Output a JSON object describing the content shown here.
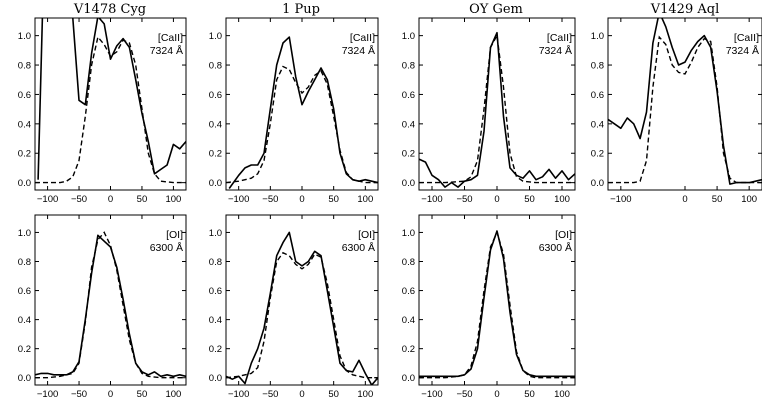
{
  "figure": {
    "titles": [
      "V1478  Cyg",
      "1  Pup",
      "OY  Gem",
      "V1429  Aql"
    ]
  },
  "chart_data": [
    {
      "type": "line",
      "title": "V1478  Cyg",
      "label_line1": "[CaII]",
      "label_line2": "7324 Å",
      "xlim": [
        -120,
        120
      ],
      "ylim": [
        -0.05,
        1.12
      ],
      "xticks": [
        -100,
        -50,
        0,
        50,
        100
      ],
      "yticks": [
        0.0,
        0.2,
        0.4,
        0.6,
        0.8,
        1.0
      ],
      "series": [
        {
          "style": "solid",
          "x": [
            -115,
            -108,
            -100,
            -90,
            -80,
            -70,
            -60,
            -50,
            -40,
            -30,
            -20,
            -10,
            0,
            10,
            20,
            30,
            40,
            50,
            60,
            70,
            80,
            90,
            100,
            110,
            120
          ],
          "y": [
            0.02,
            1.15,
            1.35,
            1.28,
            1.22,
            1.18,
            1.12,
            0.56,
            0.53,
            0.88,
            1.13,
            1.08,
            0.84,
            0.93,
            0.98,
            0.92,
            0.7,
            0.47,
            0.28,
            0.06,
            0.09,
            0.12,
            0.26,
            0.23,
            0.28
          ]
        },
        {
          "style": "dashed",
          "x": [
            -120,
            -100,
            -80,
            -70,
            -60,
            -50,
            -40,
            -30,
            -20,
            -10,
            0,
            10,
            20,
            30,
            40,
            50,
            60,
            70,
            80,
            100,
            120
          ],
          "y": [
            0,
            0,
            0,
            0.01,
            0.04,
            0.15,
            0.45,
            0.8,
            0.99,
            0.94,
            0.86,
            0.89,
            0.97,
            0.95,
            0.8,
            0.5,
            0.2,
            0.06,
            0.01,
            0,
            0
          ]
        }
      ]
    },
    {
      "type": "line",
      "title": "1  Pup",
      "label_line1": "[CaII]",
      "label_line2": "7324 Å",
      "xlim": [
        -120,
        120
      ],
      "ylim": [
        -0.05,
        1.12
      ],
      "xticks": [
        -100,
        -50,
        0,
        50,
        100
      ],
      "yticks": [
        0.0,
        0.2,
        0.4,
        0.6,
        0.8,
        1.0
      ],
      "series": [
        {
          "style": "solid",
          "x": [
            -115,
            -100,
            -90,
            -80,
            -70,
            -60,
            -50,
            -40,
            -30,
            -20,
            -10,
            0,
            10,
            20,
            30,
            40,
            50,
            60,
            70,
            80,
            90,
            100,
            110,
            120
          ],
          "y": [
            -0.04,
            0.05,
            0.1,
            0.12,
            0.12,
            0.2,
            0.5,
            0.8,
            0.95,
            0.99,
            0.72,
            0.53,
            0.62,
            0.7,
            0.78,
            0.7,
            0.5,
            0.2,
            0.06,
            0.02,
            0.01,
            0.02,
            0.01,
            0.0
          ]
        },
        {
          "style": "dashed",
          "x": [
            -120,
            -100,
            -80,
            -70,
            -60,
            -50,
            -40,
            -30,
            -20,
            -10,
            0,
            10,
            20,
            30,
            40,
            50,
            60,
            70,
            80,
            100,
            120
          ],
          "y": [
            0,
            0.01,
            0.03,
            0.06,
            0.15,
            0.4,
            0.7,
            0.79,
            0.77,
            0.68,
            0.61,
            0.65,
            0.73,
            0.76,
            0.67,
            0.45,
            0.22,
            0.07,
            0.02,
            0,
            0
          ]
        }
      ]
    },
    {
      "type": "line",
      "title": "OY  Gem",
      "label_line1": "[CaII]",
      "label_line2": "7324 Å",
      "xlim": [
        -120,
        120
      ],
      "ylim": [
        -0.05,
        1.12
      ],
      "xticks": [
        -100,
        -50,
        0,
        50,
        100
      ],
      "yticks": [
        0.0,
        0.2,
        0.4,
        0.6,
        0.8,
        1.0
      ],
      "series": [
        {
          "style": "solid",
          "x": [
            -120,
            -110,
            -100,
            -90,
            -80,
            -70,
            -60,
            -50,
            -40,
            -30,
            -20,
            -10,
            0,
            10,
            20,
            30,
            40,
            50,
            60,
            70,
            80,
            90,
            100,
            110,
            120
          ],
          "y": [
            0.16,
            0.14,
            0.05,
            0.02,
            -0.03,
            0.0,
            -0.03,
            0.01,
            0.02,
            0.05,
            0.35,
            0.92,
            1.02,
            0.45,
            0.1,
            0.05,
            0.03,
            0.08,
            0.02,
            0.04,
            0.09,
            0.03,
            0.08,
            0.02,
            0.06
          ]
        },
        {
          "style": "dashed",
          "x": [
            -120,
            -80,
            -50,
            -40,
            -30,
            -20,
            -10,
            0,
            10,
            20,
            30,
            40,
            60,
            80,
            120
          ],
          "y": [
            0,
            0,
            0.01,
            0.04,
            0.15,
            0.5,
            0.92,
            1.0,
            0.65,
            0.2,
            0.04,
            0.01,
            0,
            0,
            0
          ]
        }
      ]
    },
    {
      "type": "line",
      "title": "V1429  Aql",
      "label_line1": "[CaII]",
      "label_line2": "7324 Å",
      "xlim": [
        -120,
        120
      ],
      "ylim": [
        -0.05,
        1.12
      ],
      "xticks": [
        -100,
        0,
        50,
        100
      ],
      "yticks": [
        0.0,
        0.2,
        0.4,
        0.6,
        0.8,
        1.0
      ],
      "series": [
        {
          "style": "solid",
          "x": [
            -120,
            -110,
            -100,
            -90,
            -80,
            -70,
            -60,
            -50,
            -40,
            -30,
            -20,
            -10,
            0,
            10,
            20,
            30,
            40,
            50,
            60,
            70,
            80,
            90,
            100,
            110,
            120
          ],
          "y": [
            0.43,
            0.4,
            0.37,
            0.44,
            0.4,
            0.3,
            0.48,
            0.95,
            1.16,
            1.06,
            0.92,
            0.8,
            0.82,
            0.9,
            0.96,
            1.0,
            0.92,
            0.62,
            0.25,
            -0.01,
            0.0,
            0.0,
            0.0,
            0.01,
            0.02
          ]
        },
        {
          "style": "dashed",
          "x": [
            -120,
            -100,
            -80,
            -70,
            -60,
            -50,
            -40,
            -30,
            -20,
            -10,
            0,
            10,
            20,
            30,
            40,
            50,
            60,
            70,
            80,
            100,
            120
          ],
          "y": [
            0,
            0,
            0,
            0.01,
            0.15,
            0.65,
            0.99,
            0.94,
            0.8,
            0.75,
            0.74,
            0.82,
            0.92,
            0.98,
            0.96,
            0.65,
            0.2,
            0.03,
            0,
            0,
            0
          ]
        }
      ]
    },
    {
      "type": "line",
      "title": "",
      "label_line1": "[OI]",
      "label_line2": "6300 Å",
      "xlim": [
        -120,
        120
      ],
      "ylim": [
        -0.05,
        1.12
      ],
      "xticks": [
        -100,
        -50,
        0,
        50,
        100
      ],
      "yticks": [
        0.0,
        0.2,
        0.4,
        0.6,
        0.8,
        1.0
      ],
      "series": [
        {
          "style": "solid",
          "x": [
            -120,
            -110,
            -100,
            -90,
            -80,
            -70,
            -60,
            -50,
            -40,
            -30,
            -20,
            -10,
            0,
            10,
            20,
            30,
            40,
            50,
            60,
            70,
            80,
            90,
            100,
            110,
            120
          ],
          "y": [
            0.02,
            0.03,
            0.03,
            0.02,
            0.02,
            0.02,
            0.04,
            0.11,
            0.4,
            0.72,
            0.98,
            0.94,
            0.9,
            0.76,
            0.54,
            0.3,
            0.1,
            0.04,
            0.02,
            0.04,
            0.01,
            0.02,
            0.01,
            0.02,
            0.01
          ]
        },
        {
          "style": "dashed",
          "x": [
            -120,
            -100,
            -80,
            -60,
            -50,
            -40,
            -30,
            -20,
            -10,
            0,
            10,
            20,
            30,
            40,
            50,
            60,
            80,
            100,
            120
          ],
          "y": [
            0,
            0,
            0.01,
            0.03,
            0.1,
            0.38,
            0.76,
            0.95,
            1.0,
            0.91,
            0.74,
            0.5,
            0.26,
            0.1,
            0.03,
            0.01,
            0,
            0,
            0
          ]
        }
      ]
    },
    {
      "type": "line",
      "title": "",
      "label_line1": "[OI]",
      "label_line2": "6300 Å",
      "xlim": [
        -120,
        120
      ],
      "ylim": [
        -0.05,
        1.12
      ],
      "xticks": [
        -100,
        -50,
        0,
        50,
        100
      ],
      "yticks": [
        0.0,
        0.2,
        0.4,
        0.6,
        0.8,
        1.0
      ],
      "series": [
        {
          "style": "solid",
          "x": [
            -120,
            -110,
            -100,
            -90,
            -80,
            -70,
            -60,
            -50,
            -40,
            -30,
            -20,
            -10,
            0,
            10,
            20,
            30,
            40,
            50,
            60,
            70,
            80,
            90,
            100,
            110,
            120
          ],
          "y": [
            0.01,
            -0.01,
            0.01,
            -0.04,
            0.1,
            0.2,
            0.34,
            0.58,
            0.84,
            0.93,
            1.0,
            0.8,
            0.77,
            0.8,
            0.87,
            0.84,
            0.6,
            0.35,
            0.1,
            0.05,
            0.04,
            0.12,
            0.03,
            -0.05,
            0.0
          ]
        },
        {
          "style": "dashed",
          "x": [
            -120,
            -100,
            -80,
            -70,
            -60,
            -50,
            -40,
            -30,
            -20,
            -10,
            0,
            10,
            20,
            30,
            40,
            50,
            60,
            70,
            80,
            100,
            120
          ],
          "y": [
            0,
            0.01,
            0.03,
            0.07,
            0.25,
            0.55,
            0.8,
            0.86,
            0.84,
            0.78,
            0.75,
            0.78,
            0.85,
            0.83,
            0.65,
            0.4,
            0.15,
            0.05,
            0.02,
            0,
            0
          ]
        }
      ]
    },
    {
      "type": "line",
      "title": "",
      "label_line1": "[OI]",
      "label_line2": "6300 Å",
      "xlim": [
        -120,
        120
      ],
      "ylim": [
        -0.05,
        1.12
      ],
      "xticks": [
        -100,
        -50,
        0,
        50,
        100
      ],
      "yticks": [
        0.0,
        0.2,
        0.4,
        0.6,
        0.8,
        1.0
      ],
      "series": [
        {
          "style": "solid",
          "x": [
            -120,
            -100,
            -80,
            -60,
            -50,
            -40,
            -30,
            -20,
            -10,
            0,
            10,
            20,
            30,
            40,
            50,
            60,
            80,
            100,
            120
          ],
          "y": [
            0.01,
            0.01,
            0.01,
            0.01,
            0.02,
            0.06,
            0.2,
            0.55,
            0.88,
            1.01,
            0.82,
            0.45,
            0.16,
            0.05,
            0.02,
            0.01,
            0.01,
            0.01,
            0.01
          ]
        },
        {
          "style": "dashed",
          "x": [
            -120,
            -100,
            -80,
            -60,
            -50,
            -40,
            -30,
            -20,
            -10,
            0,
            10,
            20,
            30,
            40,
            50,
            60,
            80,
            100,
            120
          ],
          "y": [
            0,
            0,
            0,
            0.01,
            0.02,
            0.08,
            0.25,
            0.6,
            0.9,
            1.0,
            0.85,
            0.5,
            0.18,
            0.05,
            0.01,
            0,
            0,
            0,
            0
          ]
        }
      ]
    }
  ]
}
